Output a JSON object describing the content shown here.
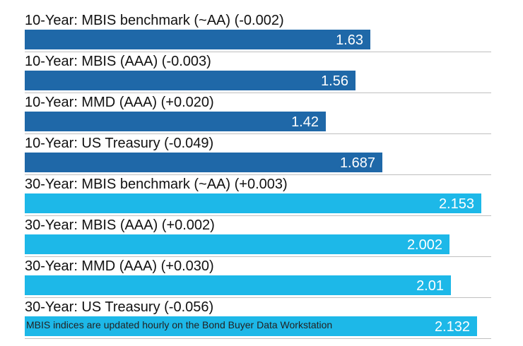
{
  "chart_data": {
    "type": "bar",
    "orientation": "horizontal",
    "categories": [
      "10-Year: MBIS benchmark (~AA) (-0.002)",
      "10-Year: MBIS (AAA) (-0.003)",
      "10-Year: MMD (AAA) (+0.020)",
      "10-Year: US Treasury (-0.049)",
      "30-Year: MBIS benchmark (~AA) (+0.003)",
      "30-Year: MBIS (AAA) (+0.002)",
      "30-Year: MMD (AAA) (+0.030)",
      "30-Year: US Treasury (-0.056)"
    ],
    "values": [
      1.63,
      1.56,
      1.42,
      1.687,
      2.153,
      2.002,
      2.01,
      2.132
    ],
    "value_labels": [
      "1.63",
      "1.56",
      "1.42",
      "1.687",
      "2.153",
      "2.002",
      "2.01",
      "2.132"
    ],
    "bar_colors": [
      "#1f68a8",
      "#1f68a8",
      "#1f68a8",
      "#1f68a8",
      "#1db8e8",
      "#1db8e8",
      "#1db8e8",
      "#1db8e8"
    ],
    "xlim": [
      0,
      2.2
    ],
    "grid": false,
    "footnote": "MBIS indices are updated hourly on the Bond Buyer Data Workstation"
  }
}
